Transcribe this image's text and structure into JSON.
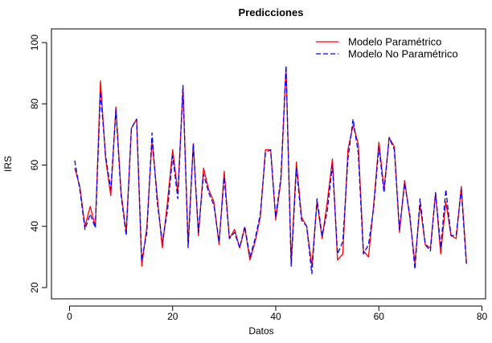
{
  "chart_data": {
    "type": "line",
    "title": "Predicciones",
    "xlabel": "Datos",
    "ylabel": "IRS",
    "xlim": [
      0,
      80
    ],
    "ylim": [
      20,
      100
    ],
    "x_ticks": [
      "0",
      "20",
      "40",
      "60",
      "80"
    ],
    "y_ticks": [
      "20",
      "40",
      "60",
      "80",
      "100"
    ],
    "grid": false,
    "legend_position": "top-right",
    "x": [
      1,
      2,
      3,
      4,
      5,
      6,
      7,
      8,
      9,
      10,
      11,
      12,
      13,
      14,
      15,
      16,
      17,
      18,
      19,
      20,
      21,
      22,
      23,
      24,
      25,
      26,
      27,
      28,
      29,
      30,
      31,
      32,
      33,
      34,
      35,
      36,
      37,
      38,
      39,
      40,
      41,
      42,
      43,
      44,
      45,
      46,
      47,
      48,
      49,
      50,
      51,
      52,
      53,
      54,
      55,
      56,
      57,
      58,
      59,
      60,
      61,
      62,
      63,
      64,
      65,
      66,
      67,
      68,
      69,
      70,
      71,
      72,
      73,
      74,
      75,
      76,
      77
    ],
    "series": [
      {
        "name": "Modelo Paramétrico",
        "color": "#ff0000",
        "dash": "solid",
        "values": [
          59,
          53,
          40,
          46.5,
          40,
          87.5,
          62,
          50,
          79,
          51,
          38,
          72,
          75,
          27,
          40,
          68,
          50,
          33,
          48,
          65,
          51,
          85,
          34,
          67,
          37,
          59,
          52,
          48,
          34,
          58,
          36,
          39,
          33,
          39.5,
          29,
          35,
          43,
          65,
          65,
          42,
          55,
          92,
          28,
          61,
          43,
          40,
          27,
          48,
          36,
          48,
          62,
          29,
          31,
          65,
          73,
          67,
          32,
          30,
          47,
          67.5,
          52,
          69,
          66,
          38,
          55,
          43,
          28,
          47,
          34,
          33,
          51,
          31,
          48,
          37,
          36,
          53,
          28
        ],
        "_note": ""
      },
      {
        "name": "Modelo No Paramétrico",
        "color": "#0000ff",
        "dash": "dashed",
        "values": [
          61.5,
          52,
          39,
          44,
          39.5,
          84,
          63,
          52,
          78,
          50,
          37,
          72,
          75,
          29,
          38,
          70.5,
          48,
          35,
          45,
          63,
          49,
          86,
          33,
          67,
          38,
          57,
          51,
          47,
          35,
          56,
          36,
          38,
          33,
          40,
          30,
          36,
          44,
          64,
          65,
          43,
          56,
          92.5,
          27,
          59,
          42,
          40,
          24.5,
          49,
          37,
          45,
          60,
          31,
          35,
          62,
          75,
          64,
          31,
          34,
          46,
          66,
          51,
          69,
          65,
          39,
          54,
          44,
          26,
          49,
          34,
          32,
          51,
          33,
          52,
          37,
          37,
          52,
          27
        ],
        "_note": ""
      }
    ]
  }
}
